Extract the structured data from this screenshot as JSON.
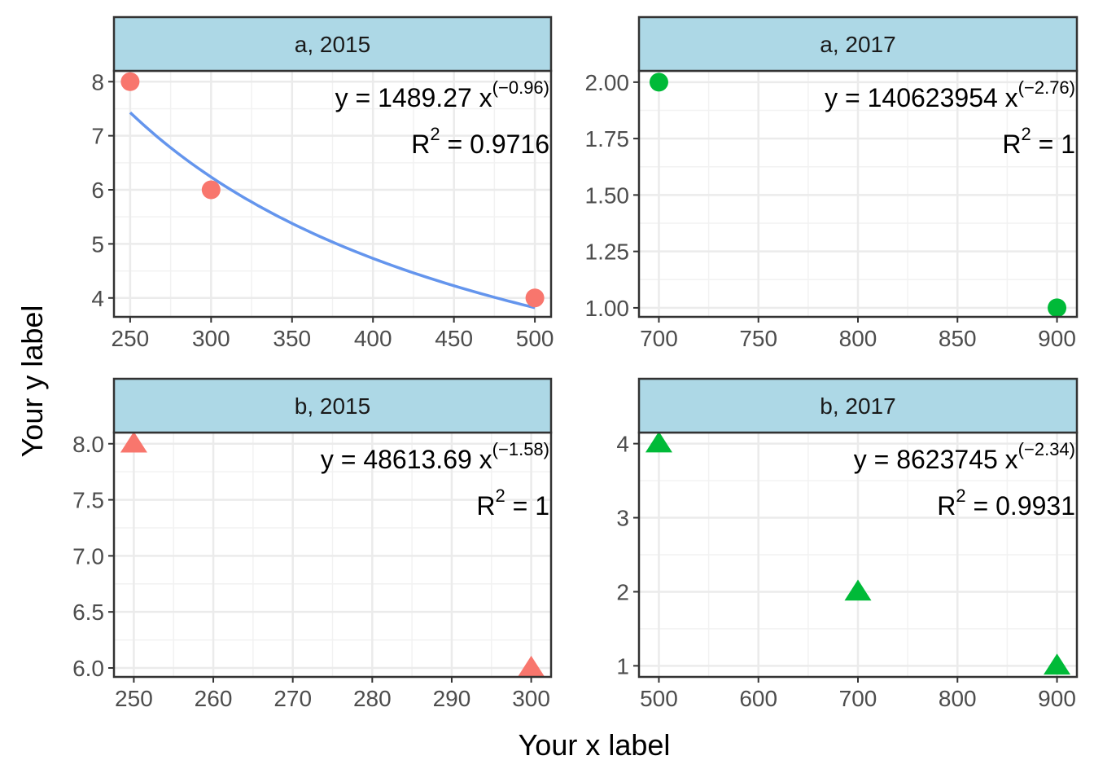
{
  "figure": {
    "xlabel": "Your x label",
    "ylabel": "Your y label"
  },
  "colors": {
    "a_points": "#F8766D",
    "b_points": "#00BA38",
    "fit_line": "#6495ED",
    "strip_fill": "#ADD8E6",
    "panel_border": "#333333",
    "grid_major": "#EBEBEB",
    "grid_minor": "#F2F2F2"
  },
  "chart_data": [
    {
      "type": "scatter",
      "title": "a, 2015",
      "marker": "circle",
      "color": "#F8766D",
      "x": [
        250,
        300,
        500
      ],
      "y": [
        8,
        6,
        4
      ],
      "xlim": [
        240,
        510
      ],
      "ylim": [
        3.65,
        8.2
      ],
      "xticks": [
        "250",
        "300",
        "350",
        "400",
        "450",
        "500"
      ],
      "yticks": [
        "4",
        "5",
        "6",
        "7",
        "8"
      ],
      "fit": {
        "coef": 1489.27,
        "exponent": -0.96,
        "x_from": 250,
        "x_to": 500,
        "color": "#6495ED"
      },
      "equation": {
        "lhs": "y",
        "coef": "1489.27",
        "var": "x",
        "exponent": "(−0.96)"
      },
      "r2": {
        "label": "R",
        "power": "2",
        "value": "0.9716"
      }
    },
    {
      "type": "scatter",
      "title": "a, 2017",
      "marker": "circle",
      "color": "#00BA38",
      "x": [
        700,
        900
      ],
      "y": [
        2.0,
        1.0
      ],
      "xlim": [
        690,
        910
      ],
      "ylim": [
        0.96,
        2.05
      ],
      "xticks": [
        "700",
        "750",
        "800",
        "850",
        "900"
      ],
      "yticks": [
        "1.00",
        "1.25",
        "1.50",
        "1.75",
        "2.00"
      ],
      "equation": {
        "lhs": "y",
        "coef": "140623954",
        "var": "x",
        "exponent": "(−2.76)"
      },
      "r2": {
        "label": "R",
        "power": "2",
        "value": "1"
      }
    },
    {
      "type": "scatter",
      "title": "b, 2015",
      "marker": "triangle",
      "color": "#F8766D",
      "x": [
        250,
        300
      ],
      "y": [
        8.0,
        6.0
      ],
      "xlim": [
        247.5,
        302.5
      ],
      "ylim": [
        5.92,
        8.1
      ],
      "xticks": [
        "250",
        "260",
        "270",
        "280",
        "290",
        "300"
      ],
      "yticks": [
        "6.0",
        "6.5",
        "7.0",
        "7.5",
        "8.0"
      ],
      "equation": {
        "lhs": "y",
        "coef": "48613.69",
        "var": "x",
        "exponent": "(−1.58)"
      },
      "r2": {
        "label": "R",
        "power": "2",
        "value": "1"
      }
    },
    {
      "type": "scatter",
      "title": "b, 2017",
      "marker": "triangle",
      "color": "#00BA38",
      "x": [
        500,
        700,
        900
      ],
      "y": [
        4,
        2,
        1
      ],
      "xlim": [
        480,
        920
      ],
      "ylim": [
        0.85,
        4.15
      ],
      "xticks": [
        "500",
        "600",
        "700",
        "800",
        "900"
      ],
      "yticks": [
        "1",
        "2",
        "3",
        "4"
      ],
      "equation": {
        "lhs": "y",
        "coef": "8623745",
        "var": "x",
        "exponent": "(−2.34)"
      },
      "r2": {
        "label": "R",
        "power": "2",
        "value": "0.9931"
      }
    }
  ]
}
